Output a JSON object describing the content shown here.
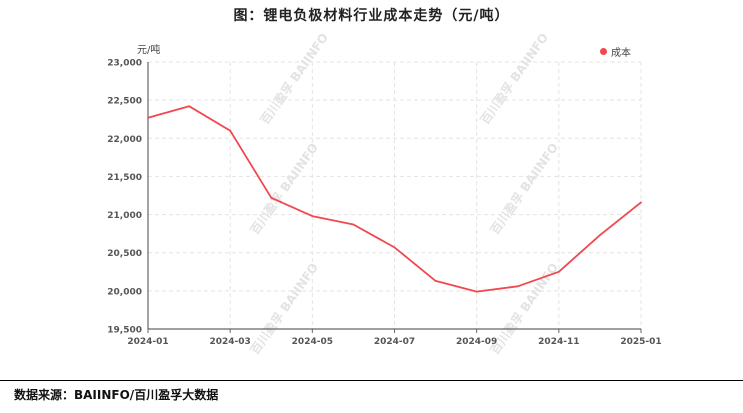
{
  "title": "图：锂电负极材料行业成本走势（元/吨）",
  "source": "数据来源：BAIINFO/百川盈孚大数据",
  "watermark": "百川盈孚 BAIINFO",
  "colors": {
    "series": "#f0484e",
    "axis": "#666666",
    "grid": "#e4e4e4"
  },
  "chart_data": {
    "type": "line",
    "title": "图：锂电负极材料行业成本走势（元/吨）",
    "ylabel": "元/吨",
    "xlabel": "",
    "ylim": [
      19500,
      23000
    ],
    "y_ticks": [
      "19,500",
      "20,000",
      "20,500",
      "21,000",
      "21,500",
      "22,000",
      "22,500",
      "23,000"
    ],
    "y_tick_values": [
      19500,
      20000,
      20500,
      21000,
      21500,
      22000,
      22500,
      23000
    ],
    "x_ticks": [
      "2024-01",
      "2024-03",
      "2024-05",
      "2024-07",
      "2024-09",
      "2024-11",
      "2025-01"
    ],
    "grid": true,
    "legend_position": "top-right",
    "series": [
      {
        "name": "成本",
        "x": [
          "2024-01",
          "2024-02",
          "2024-03",
          "2024-04",
          "2024-05",
          "2024-06",
          "2024-07",
          "2024-08",
          "2024-09",
          "2024-10",
          "2024-11",
          "2024-12",
          "2025-01"
        ],
        "values": [
          22270,
          22420,
          22100,
          21220,
          20980,
          20870,
          20570,
          20130,
          19990,
          20060,
          20250,
          20730,
          21160
        ]
      }
    ]
  }
}
